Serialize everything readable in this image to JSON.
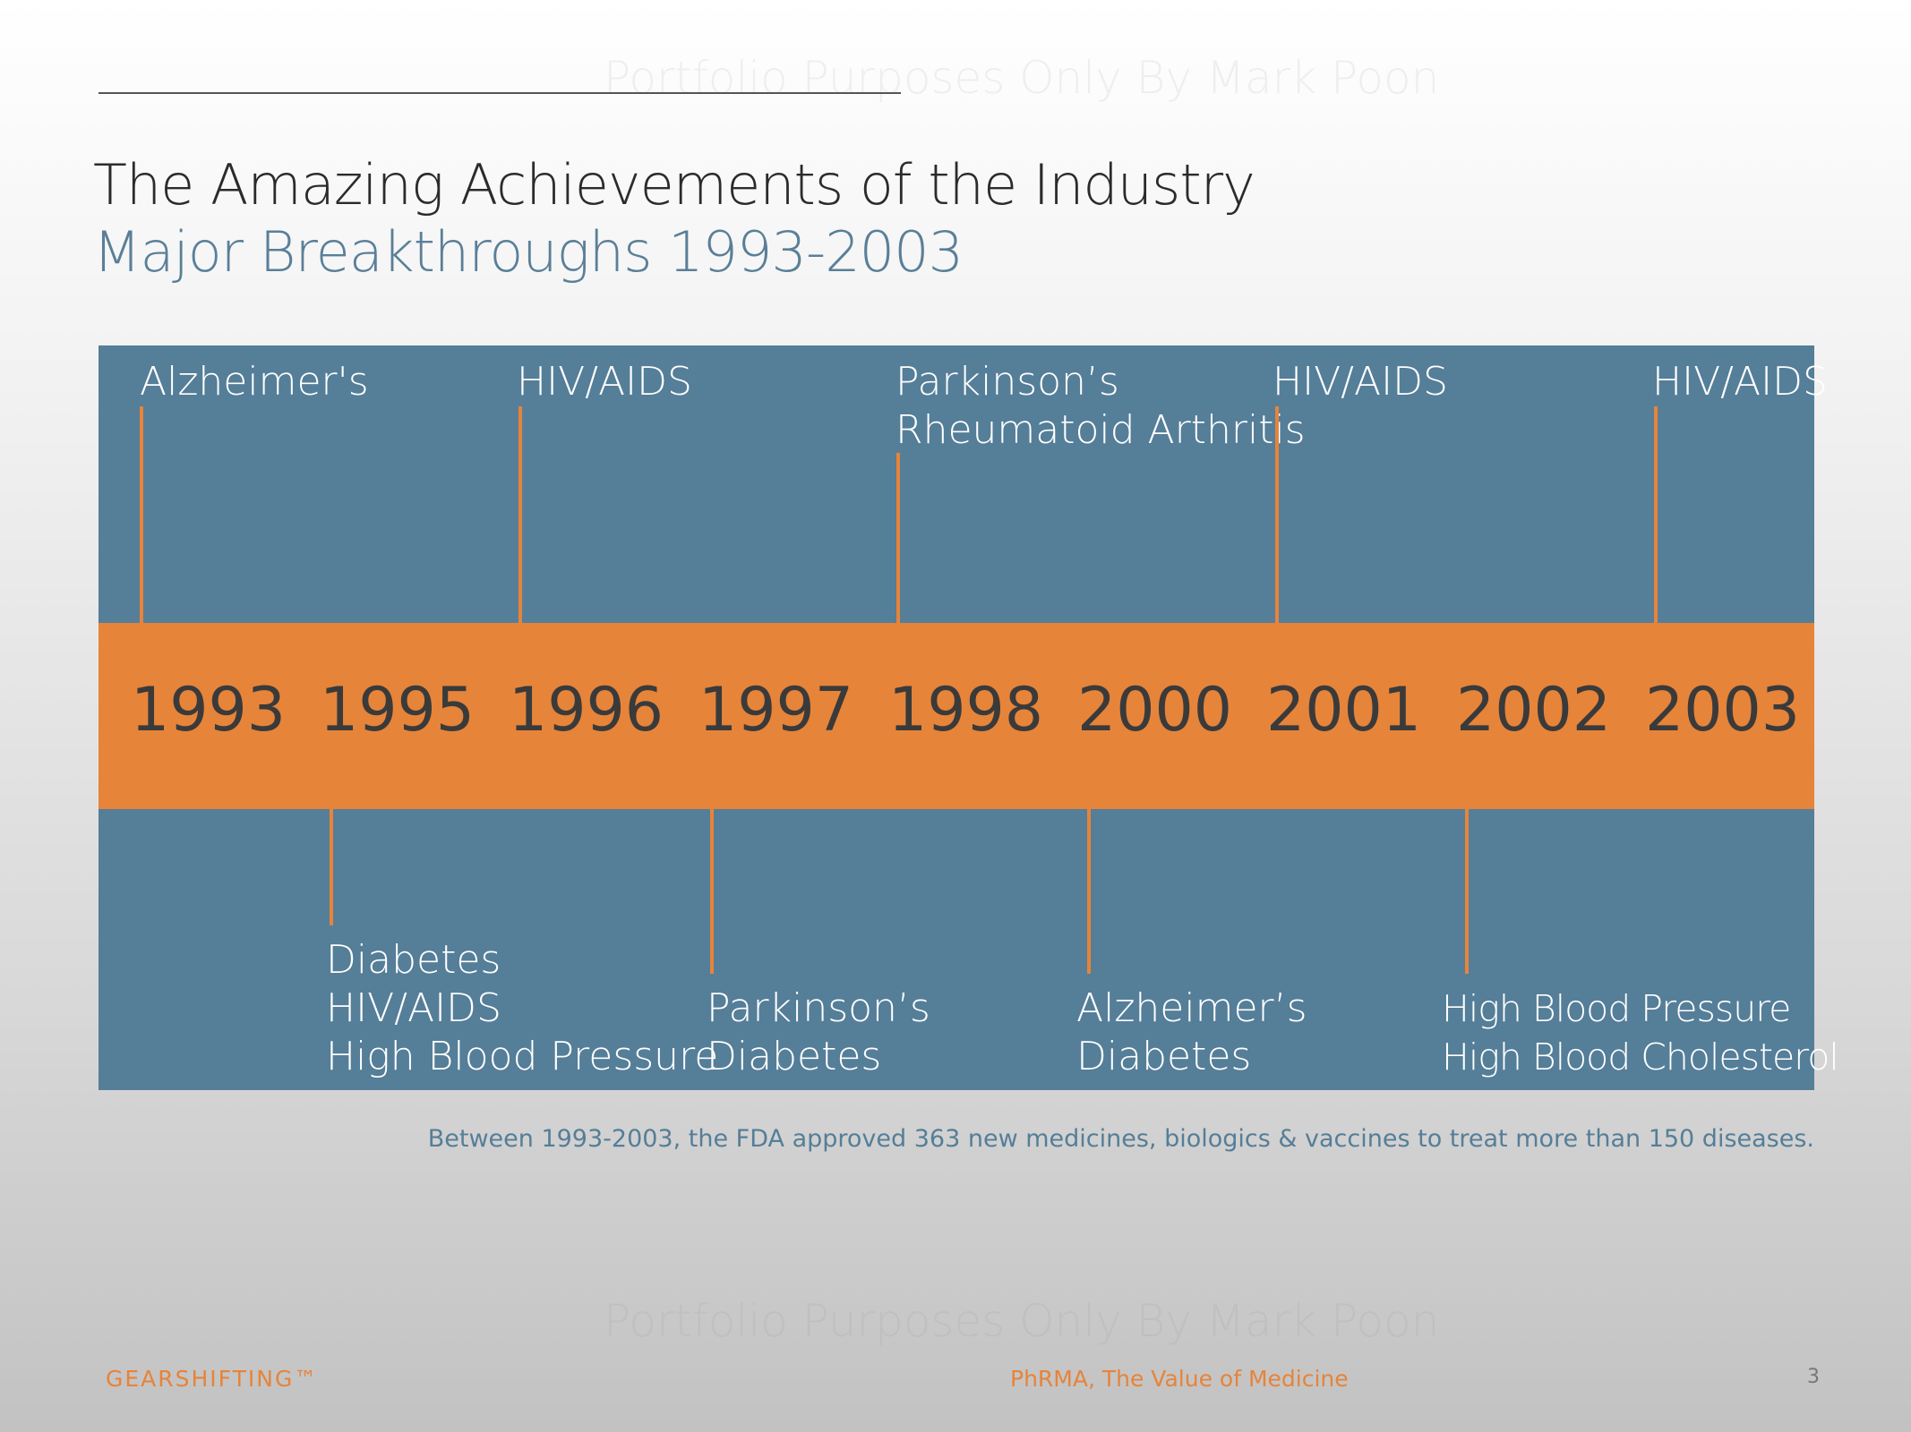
{
  "watermark": "Portfolio Purposes Only By Mark Poon",
  "title": "The Amazing Achievements of the Industry",
  "subtitle": "Major Breakthroughs 1993-2003",
  "years": [
    "1993",
    "1995",
    "1996",
    "1997",
    "1998",
    "2000",
    "2001",
    "2002",
    "2003"
  ],
  "top_labels": [
    {
      "year": "1993",
      "lines": [
        "Alzheimer's"
      ]
    },
    {
      "year": "1996",
      "lines": [
        "HIV/AIDS"
      ]
    },
    {
      "year": "1998",
      "lines": [
        "Parkinson’s",
        "Rheumatoid Arthritis"
      ]
    },
    {
      "year": "2001",
      "lines": [
        "HIV/AIDS"
      ]
    },
    {
      "year": "2003",
      "lines": [
        "HIV/AIDS"
      ]
    }
  ],
  "bottom_labels": [
    {
      "year": "1995",
      "lines": [
        "Diabetes",
        "HIV/AIDS",
        "High Blood Pressure"
      ]
    },
    {
      "year": "1997",
      "lines": [
        "Parkinson’s",
        "Diabetes"
      ]
    },
    {
      "year": "2000",
      "lines": [
        "Alzheimer’s",
        "Diabetes"
      ]
    },
    {
      "year": "2002",
      "lines": [
        "High Blood Pressure",
        "High Blood Cholesterol"
      ]
    }
  ],
  "footnote": "Between 1993-2003, the FDA approved 363 new medicines, biologics & vaccines to treat more than 150 diseases.",
  "brand": "GEARSHIFTING™",
  "source": "PhRMA, The Value of Medicine",
  "page_number": "3",
  "colors": {
    "panel": "#557e98",
    "band": "#e6843a",
    "title": "#2b2b2b",
    "subtitle": "#5a7f98",
    "accent": "#e6843a"
  }
}
